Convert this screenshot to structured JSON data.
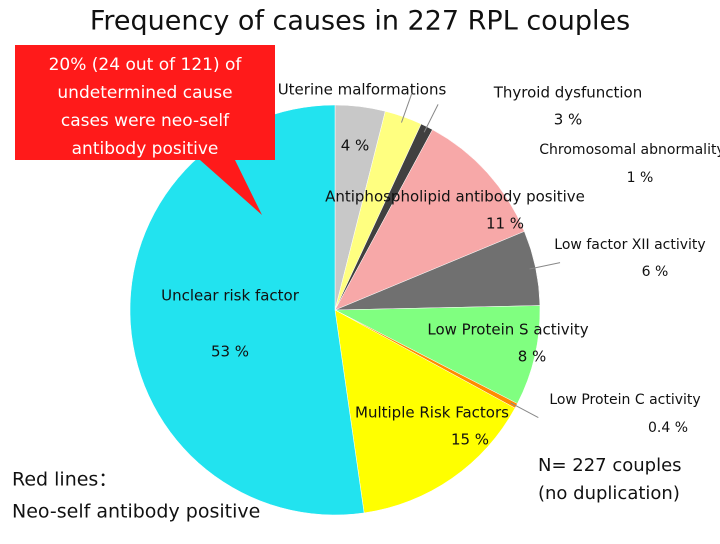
{
  "chart_data": {
    "type": "pie",
    "title": "Frequency of causes in 227 RPL couples",
    "categories": [
      "Uterine malformations",
      "Thyroid dysfunction",
      "Chromosomal abnormality",
      "Antiphospholipid antibody positive",
      "Low factor XII activity",
      "Low Protein S activity",
      "Low Protein C activity",
      "Multiple Risk Factors",
      "Unclear risk factor"
    ],
    "values": [
      4,
      3,
      1,
      11,
      6,
      8,
      0.4,
      15,
      53
    ],
    "value_labels": [
      "4 %",
      "3 %",
      "1 %",
      "11 %",
      "6 %",
      "8 %",
      "0.4 %",
      "15 %",
      "53 %"
    ],
    "colors": [
      "#c8c8c8",
      "#ffff80",
      "#404040",
      "#f7a8a8",
      "#707070",
      "#80ff80",
      "#ff8c00",
      "#ffff00",
      "#22e3ef"
    ],
    "callout": [
      "20% (24 out of 121) of",
      "undetermined cause",
      "cases were neo-self",
      "antibody positive"
    ],
    "note": [
      "Red lines：",
      "Neo-self antibody positive"
    ],
    "sample": [
      "N= 227 couples",
      "(no duplication)"
    ]
  }
}
